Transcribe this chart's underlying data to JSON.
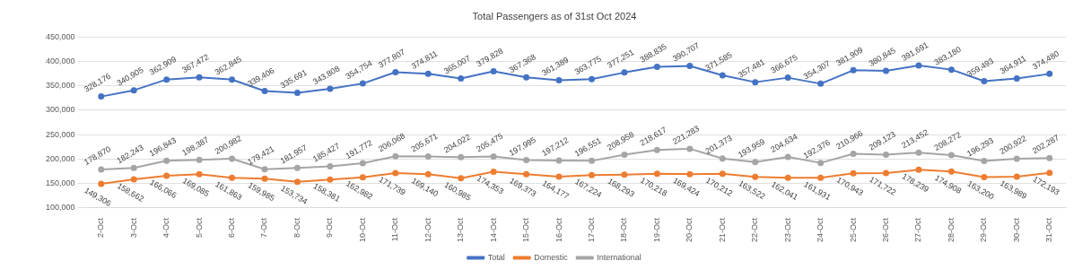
{
  "chart_data": {
    "type": "line",
    "title": "Total Passengers as of 31st Oct 2024",
    "categories": [
      "2-Oct",
      "3-Oct",
      "4-Oct",
      "5-Oct",
      "6-Oct",
      "7-Oct",
      "8-Oct",
      "9-Oct",
      "10-Oct",
      "11-Oct",
      "12-Oct",
      "13-Oct",
      "14-Oct",
      "15-Oct",
      "16-Oct",
      "17-Oct",
      "18-Oct",
      "19-Oct",
      "20-Oct",
      "21-Oct",
      "22-Oct",
      "23-Oct",
      "24-Oct",
      "25-Oct",
      "26-Oct",
      "27-Oct",
      "28-Oct",
      "29-Oct",
      "30-Oct",
      "31-Oct"
    ],
    "series": [
      {
        "name": "Total",
        "color": "#4472c4",
        "values": [
          328176,
          340905,
          362909,
          367472,
          362845,
          339406,
          335691,
          343808,
          354754,
          377807,
          374811,
          365007,
          379828,
          367368,
          361389,
          363775,
          377251,
          388835,
          390707,
          371585,
          357481,
          366675,
          354307,
          381909,
          380845,
          391691,
          383180,
          359493,
          364911,
          374480
        ],
        "value_labels": [
          "328,176",
          "340,905",
          "362,909",
          "367,472",
          "362,845",
          "339,406",
          "335,691",
          "343,808",
          "354,754",
          "377,807",
          "374,811",
          "365,007",
          "379,828",
          "367,368",
          "361,389",
          "363,775",
          "377,251",
          "388,835",
          "390,707",
          "371,585",
          "357,481",
          "366,675",
          "354,307",
          "381,909",
          "380,845",
          "391,691",
          "383,180",
          "359,493",
          "364,911",
          "374,480"
        ]
      },
      {
        "name": "Domestic",
        "color": "#ed7d31",
        "values": [
          149306,
          158662,
          166066,
          169085,
          161863,
          159985,
          153734,
          158381,
          162982,
          171739,
          169140,
          160985,
          174353,
          169373,
          164177,
          167224,
          168293,
          170218,
          169424,
          170212,
          163522,
          162041,
          161931,
          170943,
          171722,
          178239,
          174908,
          163200,
          163989,
          172193
        ],
        "value_labels": [
          "149,306",
          "158,662",
          "166,066",
          "169,085",
          "161,863",
          "159,985",
          "153,734",
          "158,381",
          "162,982",
          "171,739",
          "169,140",
          "160,985",
          "174,353",
          "169,373",
          "164,177",
          "167,224",
          "168,293",
          "170,218",
          "169,424",
          "170,212",
          "163,522",
          "162,041",
          "161,931",
          "170,943",
          "171,722",
          "178,239",
          "174,908",
          "163,200",
          "163,989",
          "172,193"
        ]
      },
      {
        "name": "International",
        "color": "#a5a5a5",
        "values": [
          178870,
          182243,
          196843,
          198387,
          200982,
          179421,
          181957,
          185427,
          191772,
          206068,
          205671,
          204022,
          205475,
          197995,
          197212,
          196551,
          208958,
          218617,
          221283,
          201373,
          193959,
          204634,
          192376,
          210966,
          209123,
          213452,
          208272,
          196293,
          200922,
          202287
        ],
        "value_labels": [
          "178,870",
          "182,243",
          "196,843",
          "198,387",
          "200,982",
          "179,421",
          "181,957",
          "185,427",
          "191,772",
          "206,068",
          "205,671",
          "204,022",
          "205,475",
          "197,995",
          "197,212",
          "196,551",
          "208,958",
          "218,617",
          "221,283",
          "201,373",
          "193,959",
          "204,634",
          "192,376",
          "210,966",
          "209,123",
          "213,452",
          "208,272",
          "196,293",
          "200,922",
          "202,287"
        ]
      }
    ],
    "ylim": [
      100000,
      450000
    ],
    "yticks": [
      {
        "value": 100000,
        "label": "100,000"
      },
      {
        "value": 150000,
        "label": "150,000"
      },
      {
        "value": 200000,
        "label": "200,000"
      },
      {
        "value": 250000,
        "label": "250,000"
      },
      {
        "value": 300000,
        "label": "300,000"
      },
      {
        "value": 350000,
        "label": "350,000"
      },
      {
        "value": 400000,
        "label": "400,000"
      },
      {
        "value": 450000,
        "label": "450,000"
      }
    ],
    "grid": "y",
    "legend": "bottom",
    "marker": "circle",
    "line_style": "solid"
  }
}
